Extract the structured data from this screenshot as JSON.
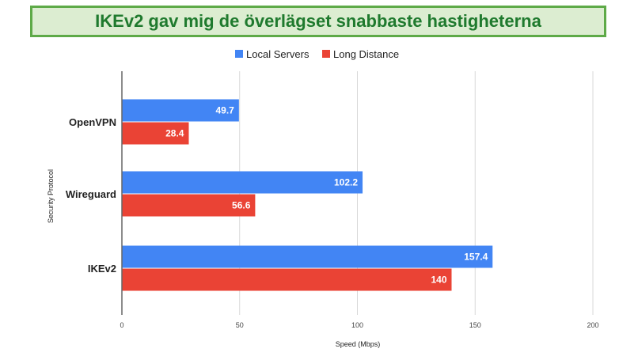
{
  "title": "IKEv2 gav mig de överlägset snabbaste hastigheterna",
  "colors": {
    "banner_bg": "#dcedd1",
    "banner_border": "#5eaa48",
    "banner_text": "#1f7a2e",
    "gridline": "#d9d9d9",
    "axis": "#666666"
  },
  "chart_data": {
    "type": "bar",
    "orientation": "horizontal",
    "categories": [
      "OpenVPN",
      "Wireguard",
      "IKEv2"
    ],
    "series": [
      {
        "name": "Local Servers",
        "color": "#4285f4",
        "values": [
          49.7,
          102.2,
          157.4
        ]
      },
      {
        "name": "Long Distance",
        "color": "#ea4335",
        "values": [
          28.4,
          56.6,
          140
        ]
      }
    ],
    "data_labels": [
      [
        "49.7",
        "102.2",
        "157.4"
      ],
      [
        "28.4",
        "56.6",
        "140"
      ]
    ],
    "xlabel": "Speed (Mbps)",
    "ylabel": "Security Protocol",
    "xlim": [
      0,
      200
    ],
    "xticks": [
      "0",
      "50",
      "100",
      "150",
      "200"
    ],
    "grid": true,
    "legend_position": "top"
  }
}
